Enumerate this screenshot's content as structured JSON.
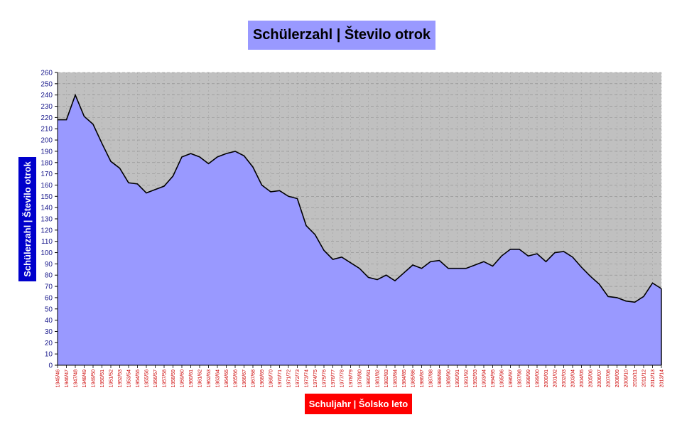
{
  "chart_data": {
    "type": "area",
    "title": "Schülerzahl | Število otrok",
    "xlabel": "Schuljahr | Šolsko leto",
    "ylabel": "Schülerzahl | Število otrok",
    "ylim": [
      0,
      260
    ],
    "ytick_step": 10,
    "grid": true,
    "legend": "none",
    "colors": {
      "area": "#9999ff",
      "line": "#000000",
      "background": "#c0c0c0",
      "grid": "#8c8c8c",
      "ytick": "#1a1a8c",
      "xtick": "#cc0000"
    },
    "categories": [
      "1945/46",
      "1946/47",
      "1947/48",
      "1948/49",
      "1949/50",
      "1950/51",
      "1951/52",
      "1952/53",
      "1953/54",
      "1954/55",
      "1955/56",
      "1956/57",
      "1957/58",
      "1958/59",
      "1959/60",
      "1960/61",
      "1961/62",
      "1962/63",
      "1963/64",
      "1964/65",
      "1965/66",
      "1966/67",
      "1967/68",
      "1968/69",
      "1969/70",
      "1970/71",
      "1971/72",
      "1972/73",
      "1973/74",
      "1974/75",
      "1975/76",
      "1976/77",
      "1977/78",
      "1978/79",
      "1979/80",
      "1980/81",
      "1981/82",
      "1982/83",
      "1983/84",
      "1984/85",
      "1985/86",
      "1986/87",
      "1987/88",
      "1988/89",
      "1989/90",
      "1990/91",
      "1991/92",
      "1992/93",
      "1993/94",
      "1994/95",
      "1995/96",
      "1996/97",
      "1997/98",
      "1998/99",
      "1999/00",
      "2000/01",
      "2001/02",
      "2002/03",
      "2003/04",
      "2004/05",
      "2005/06",
      "2006/07",
      "2007/08",
      "2008/09",
      "2009/10",
      "2010/11",
      "2011/12",
      "2012/13",
      "2013/14"
    ],
    "values": [
      218,
      218,
      240,
      221,
      214,
      197,
      181,
      175,
      162,
      161,
      153,
      156,
      159,
      168,
      185,
      188,
      185,
      179,
      185,
      188,
      190,
      186,
      176,
      160,
      154,
      155,
      150,
      148,
      124,
      116,
      102,
      94,
      96,
      91,
      86,
      78,
      76,
      80,
      75,
      82,
      89,
      86,
      92,
      93,
      86,
      86,
      86,
      89,
      92,
      88,
      97,
      103,
      103,
      97,
      99,
      92,
      100,
      101,
      96,
      87,
      79,
      72,
      61,
      60,
      57,
      56,
      61,
      73,
      68
    ]
  }
}
